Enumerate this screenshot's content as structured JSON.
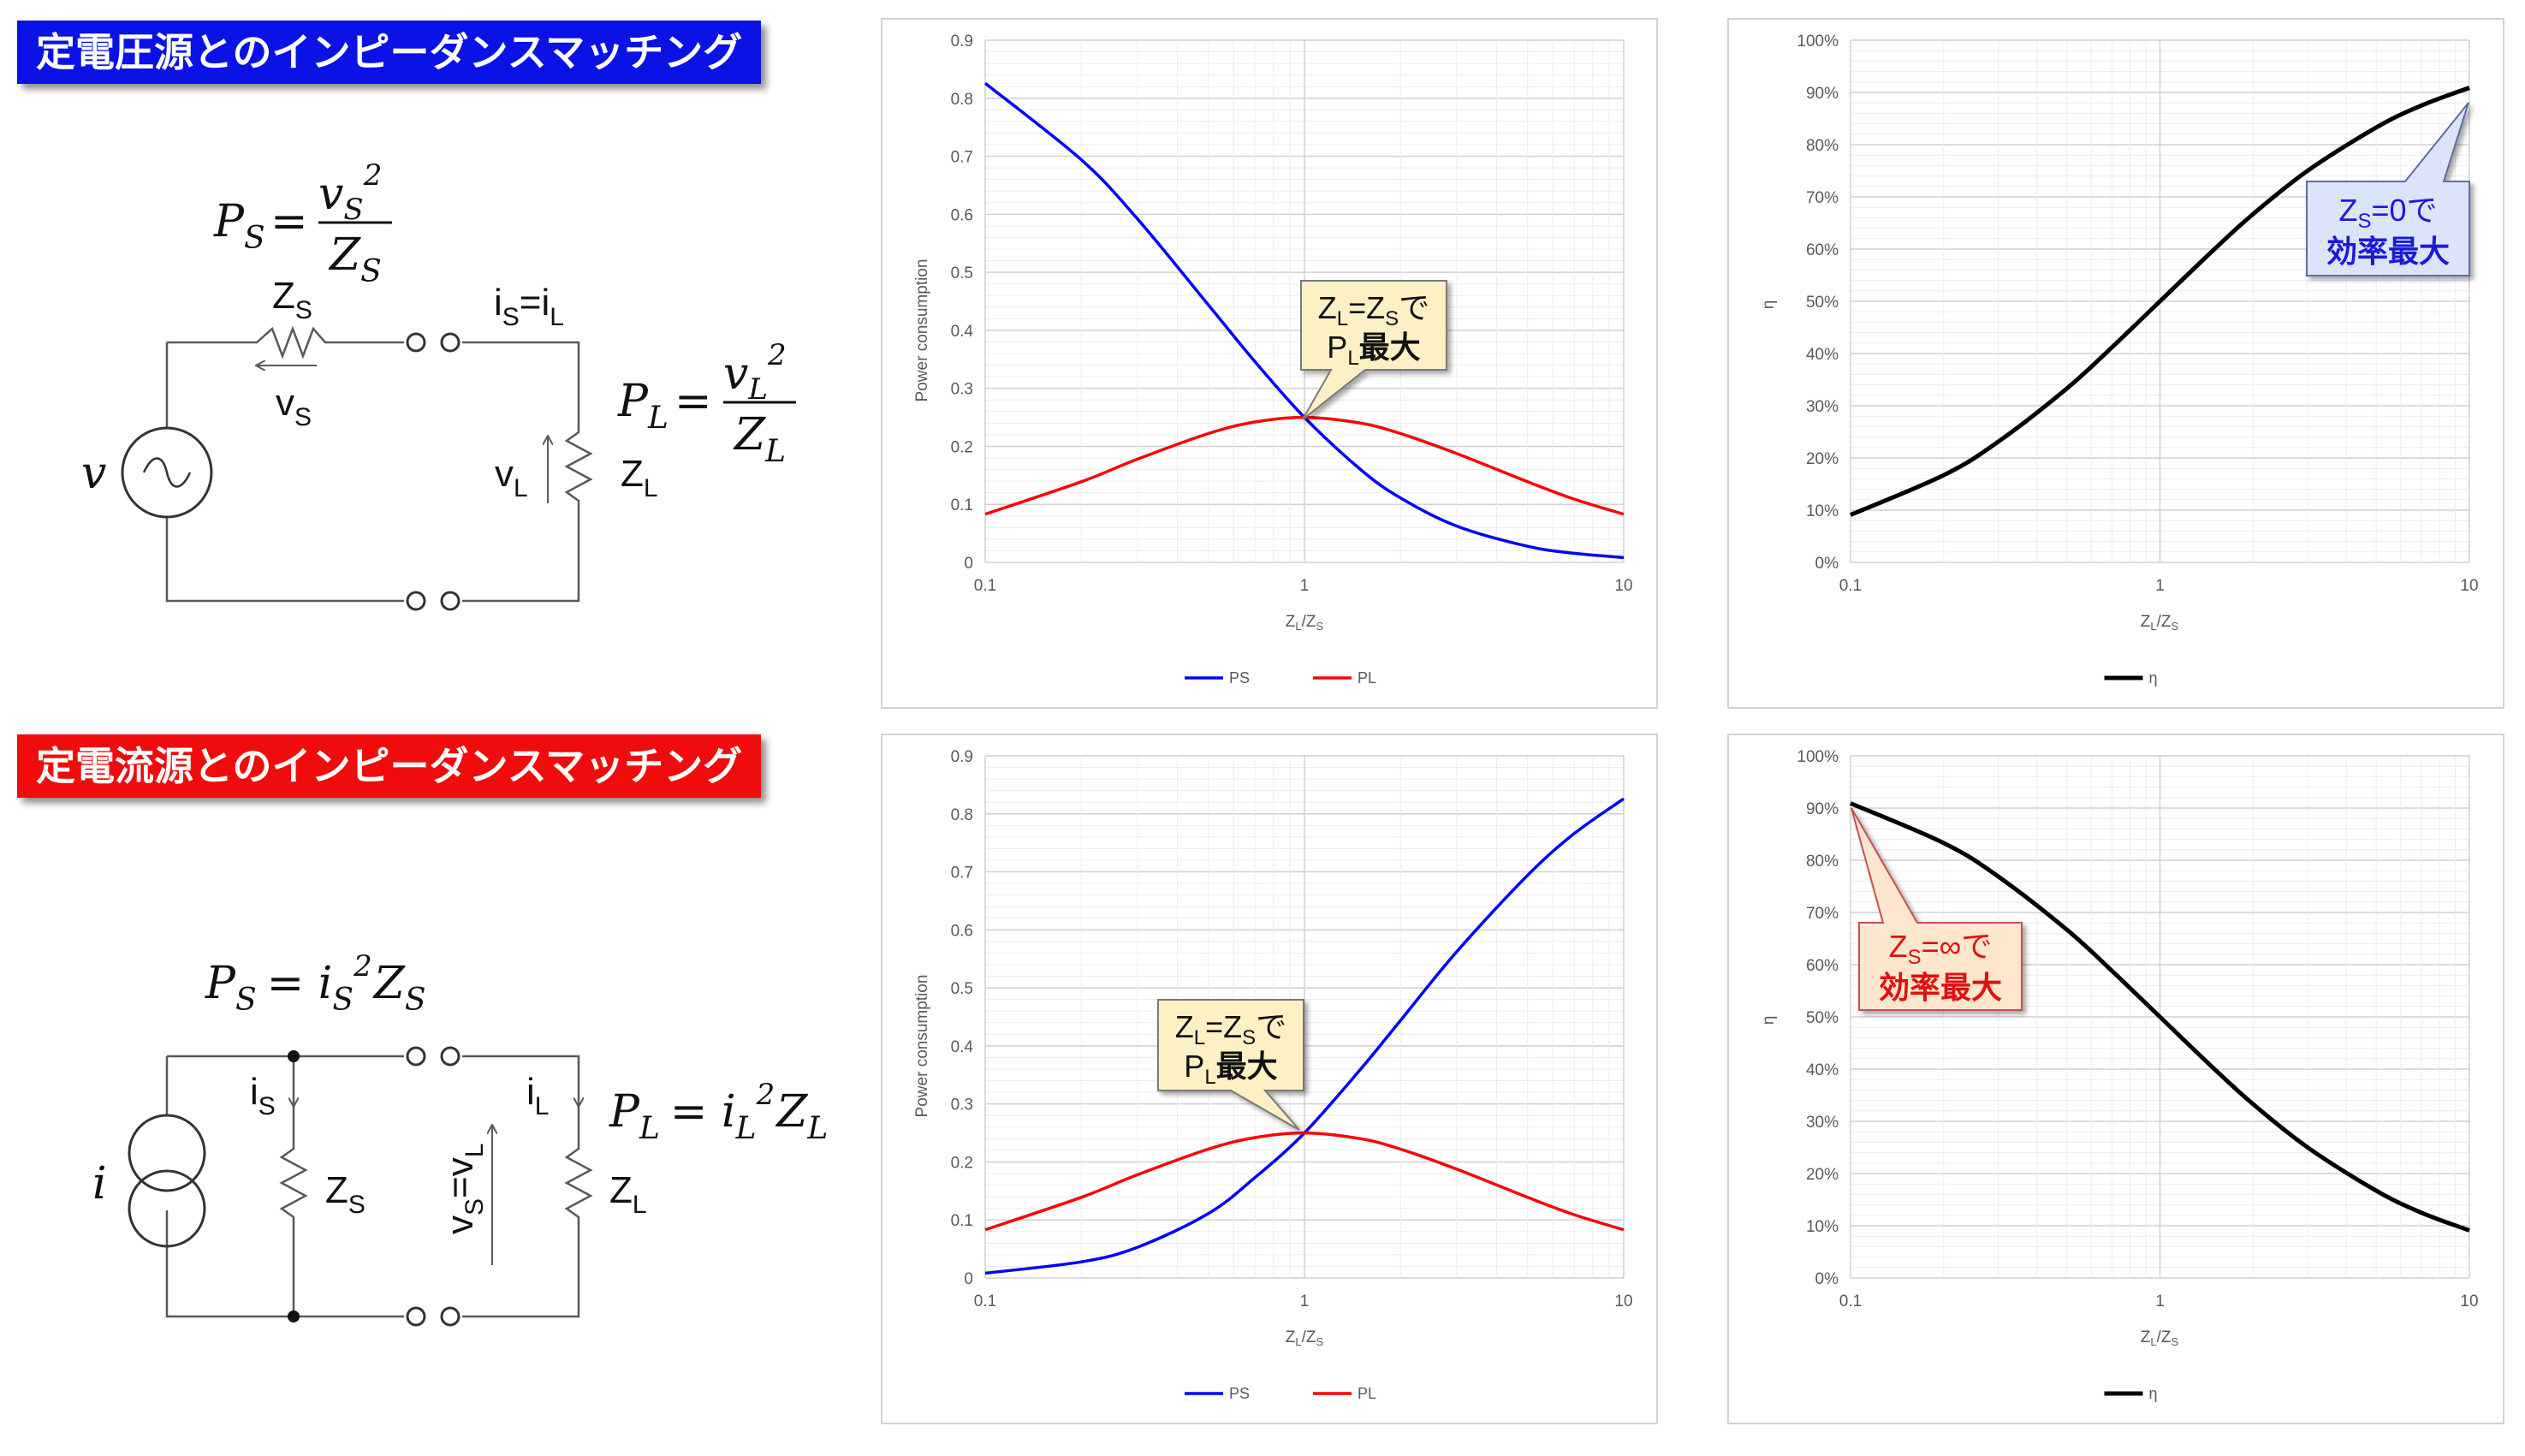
{
  "sections": {
    "voltage_title": "定電圧源とのインピーダンスマッチング",
    "current_title": "定電流源とのインピーダンスマッチング"
  },
  "circuit_voltage": {
    "source": "v",
    "eq_s": {
      "lhs": "P",
      "lhs_sub": "S",
      "num": "v",
      "num_sub": "S",
      "num_sup": "2",
      "den": "Z",
      "den_sub": "S"
    },
    "eq_l": {
      "lhs": "P",
      "lhs_sub": "L",
      "num": "v",
      "num_sub": "L",
      "num_sup": "2",
      "den": "Z",
      "den_sub": "L"
    },
    "zs": {
      "main": "Z",
      "sub": "S"
    },
    "vs": {
      "main": "v",
      "sub": "S"
    },
    "is_il": {
      "a": "i",
      "a_sub": "S",
      "eq": "=i",
      "b_sub": "L"
    },
    "vl": {
      "main": "v",
      "sub": "L"
    },
    "zl": {
      "main": "Z",
      "sub": "L"
    }
  },
  "circuit_current": {
    "source": "i",
    "eq_s": {
      "lhs": "P",
      "lhs_sub": "S",
      "rhs1": "i",
      "rhs1_sub": "S",
      "rhs1_sup": "2",
      "rhs2": "Z",
      "rhs2_sub": "S"
    },
    "eq_l": {
      "lhs": "P",
      "lhs_sub": "L",
      "rhs1": "i",
      "rhs1_sub": "L",
      "rhs1_sup": "2",
      "rhs2": "Z",
      "rhs2_sub": "L"
    },
    "is": {
      "main": "i",
      "sub": "S"
    },
    "zs": {
      "main": "Z",
      "sub": "S"
    },
    "vs_vl": {
      "a": "v",
      "a_sub": "S",
      "eq": "=v",
      "b_sub": "L"
    },
    "il": {
      "main": "i",
      "sub": "L"
    },
    "zl": {
      "main": "Z",
      "sub": "L"
    }
  },
  "callouts": {
    "match": {
      "l1_a": "Z",
      "l1_a_sub": "L",
      "l1_eq": "=Z",
      "l1_b_sub": "S",
      "l1_end": "で",
      "l2_a": "P",
      "l2_a_sub": "L",
      "l2_end": "最大"
    },
    "eff_v": {
      "l1_a": "Z",
      "l1_a_sub": "S",
      "l1_end": "=0で",
      "l2": "効率最大"
    },
    "eff_c": {
      "l1_a": "Z",
      "l1_a_sub": "S",
      "l1_end": "=∞で",
      "l2": "効率最大"
    }
  },
  "colors": {
    "ps": "#0000ff",
    "pl": "#ff0000",
    "eta": "#000000",
    "callout_match_bg": "#fdf0c4",
    "callout_eff_v_bg": "#dbe4f8",
    "callout_eff_c_bg": "#fde6cc"
  },
  "chart_data": [
    {
      "type": "line",
      "id": "power_voltage",
      "xscale": "log",
      "xlim": [
        0.1,
        10
      ],
      "ylim": [
        0,
        0.9
      ],
      "xlabel": "ZL/ZS",
      "ylabel": "Power consumption",
      "xticks": [
        "0.1",
        "1",
        "10"
      ],
      "yticks": [
        "0",
        "0.1",
        "0.2",
        "0.3",
        "0.4",
        "0.5",
        "0.6",
        "0.7",
        "0.8",
        "0.9"
      ],
      "x": [
        0.1,
        0.2,
        0.3,
        0.5,
        0.7,
        1,
        1.5,
        2,
        3,
        5,
        7,
        10
      ],
      "series": [
        {
          "name": "PS",
          "values": [
            0.826,
            0.694,
            0.592,
            0.444,
            0.346,
            0.25,
            0.16,
            0.111,
            0.0625,
            0.0278,
            0.0156,
            0.0083
          ]
        },
        {
          "name": "PL",
          "values": [
            0.083,
            0.139,
            0.178,
            0.222,
            0.242,
            0.25,
            0.24,
            0.222,
            0.1875,
            0.139,
            0.109,
            0.083
          ]
        }
      ],
      "legend": "bottom"
    },
    {
      "type": "line",
      "id": "eff_voltage",
      "xscale": "log",
      "xlim": [
        0.1,
        10
      ],
      "ylim": [
        0,
        1
      ],
      "xlabel": "ZL/ZS",
      "ylabel": "η",
      "xticks": [
        "0.1",
        "1",
        "10"
      ],
      "yticks": [
        "0%",
        "10%",
        "20%",
        "30%",
        "40%",
        "50%",
        "60%",
        "70%",
        "80%",
        "90%",
        "100%"
      ],
      "x": [
        0.1,
        0.2,
        0.3,
        0.5,
        0.7,
        1,
        1.5,
        2,
        3,
        5,
        7,
        10
      ],
      "series": [
        {
          "name": "η",
          "values": [
            0.091,
            0.167,
            0.231,
            0.333,
            0.412,
            0.5,
            0.6,
            0.667,
            0.75,
            0.833,
            0.875,
            0.909
          ]
        }
      ],
      "legend": "bottom"
    },
    {
      "type": "line",
      "id": "power_current",
      "xscale": "log",
      "xlim": [
        0.1,
        10
      ],
      "ylim": [
        0,
        0.9
      ],
      "xlabel": "ZL/ZS",
      "ylabel": "Power consumption",
      "xticks": [
        "0.1",
        "1",
        "10"
      ],
      "yticks": [
        "0",
        "0.1",
        "0.2",
        "0.3",
        "0.4",
        "0.5",
        "0.6",
        "0.7",
        "0.8",
        "0.9"
      ],
      "x": [
        0.1,
        0.2,
        0.3,
        0.5,
        0.7,
        1,
        1.5,
        2,
        3,
        5,
        7,
        10
      ],
      "series": [
        {
          "name": "PS",
          "values": [
            0.0083,
            0.0278,
            0.053,
            0.111,
            0.173,
            0.25,
            0.36,
            0.444,
            0.5625,
            0.694,
            0.766,
            0.826
          ]
        },
        {
          "name": "PL",
          "values": [
            0.083,
            0.139,
            0.178,
            0.222,
            0.242,
            0.25,
            0.24,
            0.222,
            0.1875,
            0.139,
            0.109,
            0.083
          ]
        }
      ],
      "legend": "bottom"
    },
    {
      "type": "line",
      "id": "eff_current",
      "xscale": "log",
      "xlim": [
        0.1,
        10
      ],
      "ylim": [
        0,
        1
      ],
      "xlabel": "ZL/ZS",
      "ylabel": "η",
      "xticks": [
        "0.1",
        "1",
        "10"
      ],
      "yticks": [
        "0%",
        "10%",
        "20%",
        "30%",
        "40%",
        "50%",
        "60%",
        "70%",
        "80%",
        "90%",
        "100%"
      ],
      "x": [
        0.1,
        0.2,
        0.3,
        0.5,
        0.7,
        1,
        1.5,
        2,
        3,
        5,
        7,
        10
      ],
      "series": [
        {
          "name": "η",
          "values": [
            0.909,
            0.833,
            0.769,
            0.667,
            0.588,
            0.5,
            0.4,
            0.333,
            0.25,
            0.167,
            0.125,
            0.091
          ]
        }
      ],
      "legend": "bottom"
    }
  ]
}
